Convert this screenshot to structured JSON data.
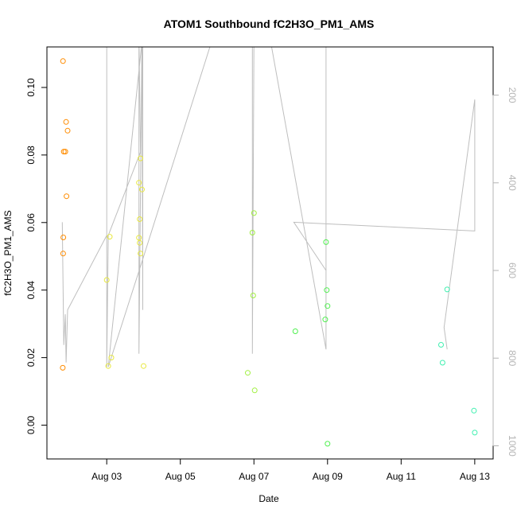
{
  "chart_data": {
    "type": "scatter",
    "title": "ATOM1 Southbound fC2H3O_PM1_AMS",
    "xlabel": "Date",
    "ylabel": "fC2H3O_PM1_AMS",
    "xlim": [
      "2017-08-01T09:00",
      "2017-08-13T12:00"
    ],
    "ylim": [
      -0.01,
      0.112
    ],
    "yticks": [
      0.0,
      0.02,
      0.04,
      0.06,
      0.08,
      0.1
    ],
    "ytick_labels": [
      "0.00",
      "0.02",
      "0.04",
      "0.06",
      "0.08",
      "0.10"
    ],
    "xticks": [
      "2017-08-03",
      "2017-08-05",
      "2017-08-07",
      "2017-08-09",
      "2017-08-11",
      "2017-08-13"
    ],
    "xtick_labels": [
      "Aug 03",
      "Aug 05",
      "Aug 07",
      "Aug 09",
      "Aug 11",
      "Aug 13"
    ],
    "secondary_axis": {
      "side": "right",
      "color": "#b4b4b4",
      "reversed": true,
      "ticks": [
        200,
        400,
        600,
        800,
        1000
      ],
      "tick_labels": [
        "200",
        "400",
        "600",
        "800",
        "1000"
      ],
      "ylim": [
        1030,
        90
      ]
    },
    "grid": false,
    "points": [
      {
        "x": "2017-08-01T19:30",
        "y": 0.1078,
        "color": "#ff8c00"
      },
      {
        "x": "2017-08-01T20:00",
        "y": 0.081,
        "color": "#ff8c00"
      },
      {
        "x": "2017-08-01T21:00",
        "y": 0.081,
        "color": "#ff8c00"
      },
      {
        "x": "2017-08-01T21:30",
        "y": 0.0898,
        "color": "#ff8c00"
      },
      {
        "x": "2017-08-01T22:30",
        "y": 0.0872,
        "color": "#ff8c00"
      },
      {
        "x": "2017-08-01T21:45",
        "y": 0.0678,
        "color": "#ff8c00"
      },
      {
        "x": "2017-08-01T19:40",
        "y": 0.0556,
        "color": "#ff8c00"
      },
      {
        "x": "2017-08-01T19:35",
        "y": 0.0508,
        "color": "#ff8c00"
      },
      {
        "x": "2017-08-01T19:20",
        "y": 0.017,
        "color": "#ff8c00"
      },
      {
        "x": "2017-08-03T00:00",
        "y": 0.043,
        "color": "#e8e840"
      },
      {
        "x": "2017-08-03T02:00",
        "y": 0.0558,
        "color": "#e8e840"
      },
      {
        "x": "2017-08-03T01:00",
        "y": 0.0175,
        "color": "#e8e840"
      },
      {
        "x": "2017-08-03T03:00",
        "y": 0.02,
        "color": "#e8e840"
      },
      {
        "x": "2017-08-03T21:00",
        "y": 0.0718,
        "color": "#e8e840"
      },
      {
        "x": "2017-08-03T22:00",
        "y": 0.079,
        "color": "#e8e840"
      },
      {
        "x": "2017-08-03T23:00",
        "y": 0.0698,
        "color": "#e8e840"
      },
      {
        "x": "2017-08-03T21:30",
        "y": 0.061,
        "color": "#e8e840"
      },
      {
        "x": "2017-08-03T21:00",
        "y": 0.0555,
        "color": "#e8e840"
      },
      {
        "x": "2017-08-03T21:30",
        "y": 0.054,
        "color": "#e8e840"
      },
      {
        "x": "2017-08-03T22:00",
        "y": 0.0508,
        "color": "#e8e840"
      },
      {
        "x": "2017-08-04T00:00",
        "y": 0.0175,
        "color": "#e8e840"
      },
      {
        "x": "2017-08-06T20:00",
        "y": 0.0155,
        "color": "#a0f040"
      },
      {
        "x": "2017-08-06T23:00",
        "y": 0.057,
        "color": "#a0f040"
      },
      {
        "x": "2017-08-07T00:00",
        "y": 0.0628,
        "color": "#a0f040"
      },
      {
        "x": "2017-08-06T23:30",
        "y": 0.0384,
        "color": "#a0f040"
      },
      {
        "x": "2017-08-07T00:30",
        "y": 0.0103,
        "color": "#a0f040"
      },
      {
        "x": "2017-08-08T03:00",
        "y": 0.0278,
        "color": "#50f050"
      },
      {
        "x": "2017-08-08T23:00",
        "y": 0.0542,
        "color": "#50f050"
      },
      {
        "x": "2017-08-08T23:30",
        "y": 0.04,
        "color": "#50f050"
      },
      {
        "x": "2017-08-09T00:00",
        "y": 0.0353,
        "color": "#50f050"
      },
      {
        "x": "2017-08-08T22:30",
        "y": 0.0313,
        "color": "#50f050"
      },
      {
        "x": "2017-08-09T00:00",
        "y": -0.0055,
        "color": "#50f050"
      },
      {
        "x": "2017-08-12T02:00",
        "y": 0.0238,
        "color": "#40f0b0"
      },
      {
        "x": "2017-08-12T03:00",
        "y": 0.0185,
        "color": "#40f0b0"
      },
      {
        "x": "2017-08-12T06:00",
        "y": 0.0402,
        "color": "#40f0b0"
      },
      {
        "x": "2017-08-12T23:30",
        "y": 0.0043,
        "color": "#40f0b0"
      },
      {
        "x": "2017-08-13T00:00",
        "y": -0.0022,
        "color": "#40f0b0"
      }
    ],
    "secondary_series": {
      "name": "",
      "color": "#bebebe",
      "line": [
        [
          "2017-08-01T19:00",
          490
        ],
        [
          "2017-08-01T20:00",
          770
        ],
        [
          "2017-08-01T21:00",
          700
        ],
        [
          "2017-08-01T21:30",
          810
        ],
        [
          "2017-08-01T22:30",
          690
        ],
        [
          "2017-08-03T00:00",
          520
        ],
        [
          "2017-08-03T00:00",
          60
        ],
        [
          "2017-08-03T00:00",
          820
        ],
        [
          "2017-08-03T01:00",
          520
        ],
        [
          "2017-08-03T22:00",
          330
        ],
        [
          "2017-08-03T21:00",
          60
        ],
        [
          "2017-08-03T21:00",
          790
        ],
        [
          "2017-08-03T23:00",
          60
        ],
        [
          "2017-08-03T23:30",
          690
        ],
        [
          "2017-08-03T23:30",
          60
        ],
        [
          "2017-08-03T01:00",
          820
        ],
        [
          "2017-08-03T23:00",
          580
        ],
        [
          "2017-08-05T22:00",
          60
        ],
        [
          "2017-08-06T23:00",
          60
        ],
        [
          "2017-08-06T23:00",
          790
        ],
        [
          "2017-08-07T00:00",
          60
        ],
        [
          "2017-08-07T10:00",
          60
        ],
        [
          "2017-08-08T23:00",
          780
        ],
        [
          "2017-08-08T23:00",
          60
        ],
        [
          "2017-08-08T23:00",
          600
        ],
        [
          "2017-08-08T02:00",
          490
        ],
        [
          "2017-08-13T00:00",
          510
        ],
        [
          "2017-08-13T00:00",
          210
        ],
        [
          "2017-08-12T04:00",
          730
        ],
        [
          "2017-08-12T06:00",
          780
        ]
      ]
    }
  }
}
